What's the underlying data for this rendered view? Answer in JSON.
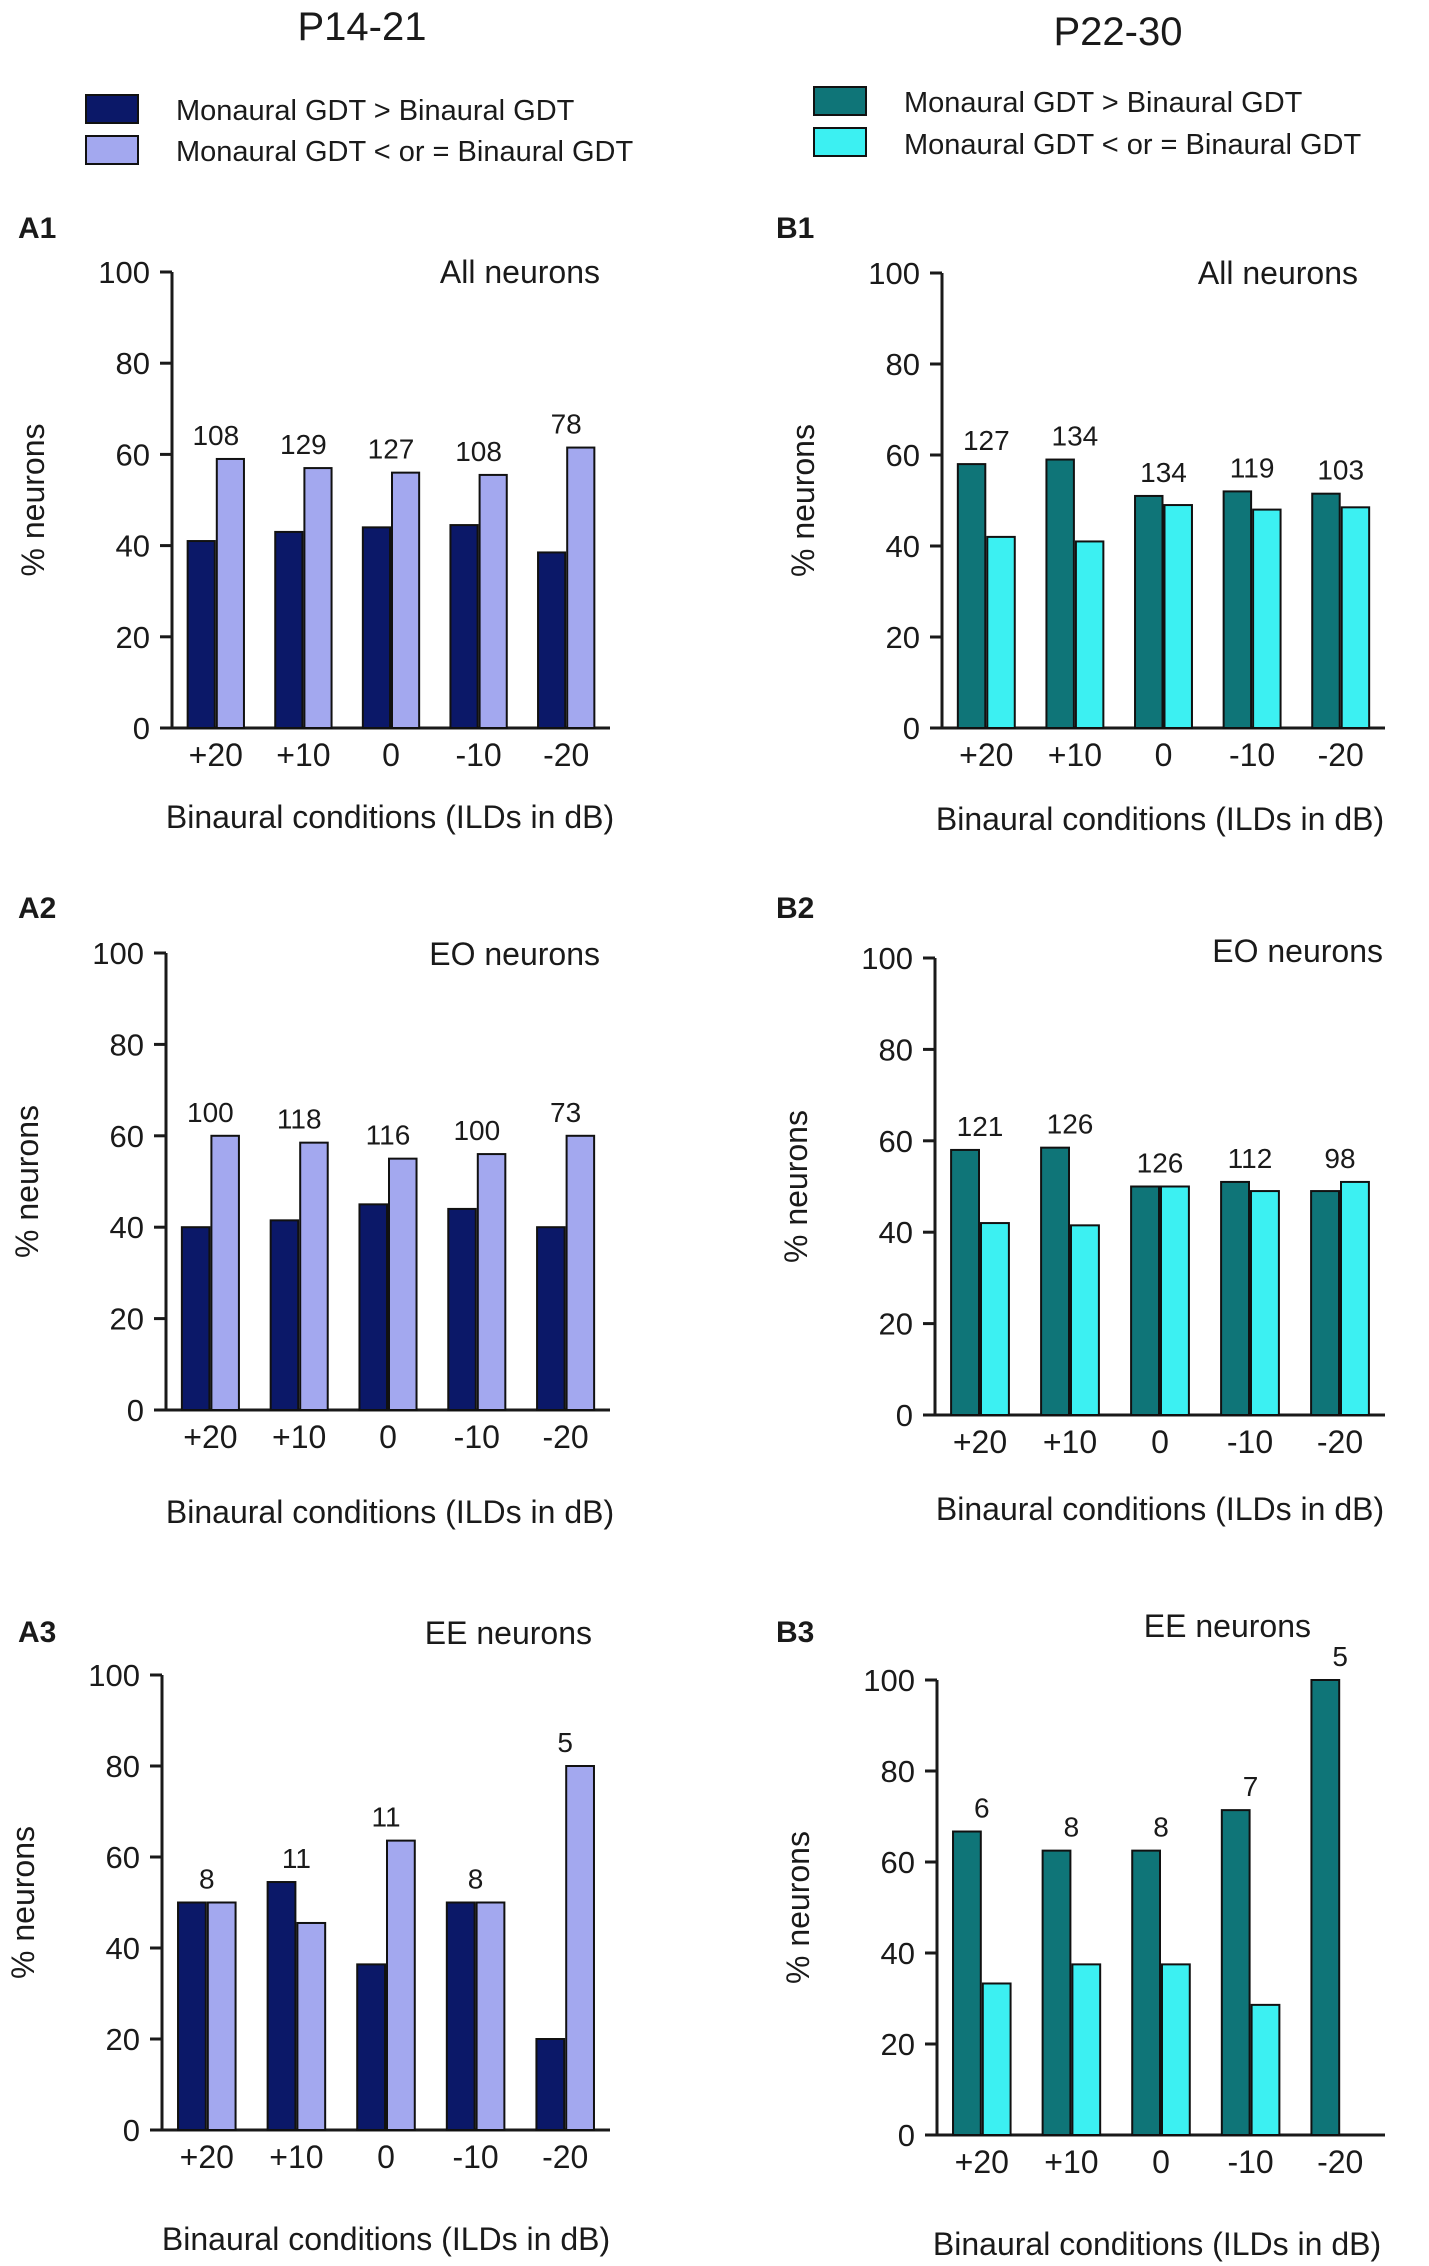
{
  "groups": [
    {
      "title": "P14-21",
      "legend": [
        {
          "label": "Monaural GDT > Binaural GDT",
          "color": "#0b1868"
        },
        {
          "label": "Monaural GDT < or = Binaural GDT",
          "color": "#a3a8ef"
        }
      ]
    },
    {
      "title": "P22-30",
      "legend": [
        {
          "label": "Monaural GDT > Binaural GDT",
          "color": "#0f7578"
        },
        {
          "label": "Monaural GDT < or = Binaural GDT",
          "color": "#3cf0f2"
        }
      ]
    }
  ],
  "chart_data": [
    {
      "id": "A1",
      "panel_label": "A1",
      "type": "bar",
      "title": "All neurons",
      "categories": [
        "+20",
        "+10",
        "0",
        "-10",
        "-20"
      ],
      "series": [
        {
          "name": "Monaural GDT > Binaural GDT",
          "values": [
            41,
            43,
            44,
            44.5,
            38.5
          ]
        },
        {
          "name": "Monaural GDT < or = Binaural GDT",
          "values": [
            59,
            57,
            56,
            55.5,
            61.5
          ]
        }
      ],
      "n_labels": [
        "108",
        "129",
        "127",
        "108",
        "78"
      ],
      "xlabel": "Binaural conditions (ILDs in dB)",
      "ylabel": "% neurons",
      "ylim": [
        0,
        100
      ],
      "yticks": [
        0,
        20,
        40,
        60,
        80,
        100
      ],
      "colors": [
        "#0b1868",
        "#a3a8ef"
      ]
    },
    {
      "id": "B1",
      "panel_label": "B1",
      "type": "bar",
      "title": "All neurons",
      "categories": [
        "+20",
        "+10",
        "0",
        "-10",
        "-20"
      ],
      "series": [
        {
          "name": "Monaural GDT > Binaural GDT",
          "values": [
            58,
            59,
            51,
            52,
            51.5
          ]
        },
        {
          "name": "Monaural GDT < or = Binaural GDT",
          "values": [
            42,
            41,
            49,
            48,
            48.5
          ]
        }
      ],
      "n_labels": [
        "127",
        "134",
        "134",
        "119",
        "103"
      ],
      "xlabel": "Binaural conditions (ILDs in dB)",
      "ylabel": "% neurons",
      "ylim": [
        0,
        100
      ],
      "yticks": [
        0,
        20,
        40,
        60,
        80,
        100
      ],
      "colors": [
        "#0f7578",
        "#3cf0f2"
      ]
    },
    {
      "id": "A2",
      "panel_label": "A2",
      "type": "bar",
      "title": "EO neurons",
      "categories": [
        "+20",
        "+10",
        "0",
        "-10",
        "-20"
      ],
      "series": [
        {
          "name": "Monaural GDT > Binaural GDT",
          "values": [
            40,
            41.5,
            45,
            44,
            40
          ]
        },
        {
          "name": "Monaural GDT < or = Binaural GDT",
          "values": [
            60,
            58.5,
            55,
            56,
            60
          ]
        }
      ],
      "n_labels": [
        "100",
        "118",
        "116",
        "100",
        "73"
      ],
      "xlabel": "Binaural conditions (ILDs in dB)",
      "ylabel": "% neurons",
      "ylim": [
        0,
        100
      ],
      "yticks": [
        0,
        20,
        40,
        60,
        80,
        100
      ],
      "colors": [
        "#0b1868",
        "#a3a8ef"
      ]
    },
    {
      "id": "B2",
      "panel_label": "B2",
      "type": "bar",
      "title": "EO neurons",
      "categories": [
        "+20",
        "+10",
        "0",
        "-10",
        "-20"
      ],
      "series": [
        {
          "name": "Monaural GDT > Binaural GDT",
          "values": [
            58,
            58.5,
            50,
            51,
            49
          ]
        },
        {
          "name": "Monaural GDT < or = Binaural GDT",
          "values": [
            42,
            41.5,
            50,
            49,
            51
          ]
        }
      ],
      "n_labels": [
        "121",
        "126",
        "126",
        "112",
        "98"
      ],
      "xlabel": "Binaural conditions (ILDs in dB)",
      "ylabel": "% neurons",
      "ylim": [
        0,
        100
      ],
      "yticks": [
        0,
        20,
        40,
        60,
        80,
        100
      ],
      "colors": [
        "#0f7578",
        "#3cf0f2"
      ]
    },
    {
      "id": "A3",
      "panel_label": "A3",
      "type": "bar",
      "title": "EE neurons",
      "categories": [
        "+20",
        "+10",
        "0",
        "-10",
        "-20"
      ],
      "series": [
        {
          "name": "Monaural GDT > Binaural GDT",
          "values": [
            50,
            54.5,
            36.4,
            50,
            20
          ]
        },
        {
          "name": "Monaural GDT < or = Binaural GDT",
          "values": [
            50,
            45.5,
            63.6,
            50,
            80
          ]
        }
      ],
      "n_labels": [
        "8",
        "11",
        "11",
        "8",
        "5"
      ],
      "xlabel": "Binaural conditions (ILDs in dB)",
      "ylabel": "% neurons",
      "ylim": [
        0,
        100
      ],
      "yticks": [
        0,
        20,
        40,
        60,
        80,
        100
      ],
      "colors": [
        "#0b1868",
        "#a3a8ef"
      ]
    },
    {
      "id": "B3",
      "panel_label": "B3",
      "type": "bar",
      "title": "EE neurons",
      "categories": [
        "+20",
        "+10",
        "0",
        "-10",
        "-20"
      ],
      "series": [
        {
          "name": "Monaural GDT > Binaural GDT",
          "values": [
            66.7,
            62.5,
            62.5,
            71.4,
            100
          ]
        },
        {
          "name": "Monaural GDT < or = Binaural GDT",
          "values": [
            33.3,
            37.5,
            37.5,
            28.6,
            0
          ]
        }
      ],
      "n_labels": [
        "6",
        "8",
        "8",
        "7",
        "5"
      ],
      "xlabel": "Binaural conditions (ILDs in dB)",
      "ylabel": "% neurons",
      "ylim": [
        0,
        100
      ],
      "yticks": [
        0,
        20,
        40,
        60,
        80,
        100
      ],
      "colors": [
        "#0f7578",
        "#3cf0f2"
      ]
    }
  ]
}
